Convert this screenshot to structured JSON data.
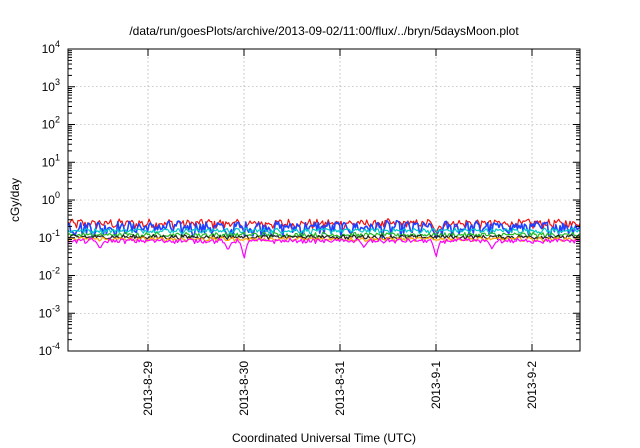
{
  "chart_data": {
    "type": "line",
    "title": "/data/run/goesPlots/archive/2013-09-02/11:00/flux/../bryn/5daysMoon.plot",
    "xlabel": "Coordinated Universal Time (UTC)",
    "ylabel": "cGy/day",
    "yscale": "log",
    "ylim": [
      0.0001,
      10000
    ],
    "y_ticks": [
      {
        "value": 0.0001,
        "base": "10",
        "exp": "-4"
      },
      {
        "value": 0.001,
        "base": "10",
        "exp": "-3"
      },
      {
        "value": 0.01,
        "base": "10",
        "exp": "-2"
      },
      {
        "value": 0.1,
        "base": "10",
        "exp": "-1"
      },
      {
        "value": 1,
        "base": "10",
        "exp": "0"
      },
      {
        "value": 10,
        "base": "10",
        "exp": "1"
      },
      {
        "value": 100,
        "base": "10",
        "exp": "2"
      },
      {
        "value": 1000,
        "base": "10",
        "exp": "3"
      },
      {
        "value": 10000,
        "base": "10",
        "exp": "4"
      }
    ],
    "xlim": [
      "2013-08-28T04:00",
      "2013-09-02T12:00"
    ],
    "x_ticks": [
      {
        "value": "2013-08-29T00:00",
        "label": "2013-8-29"
      },
      {
        "value": "2013-08-30T00:00",
        "label": "2013-8-30"
      },
      {
        "value": "2013-08-31T00:00",
        "label": "2013-8-31"
      },
      {
        "value": "2013-09-01T00:00",
        "label": "2013-9-1"
      },
      {
        "value": "2013-09-02T00:00",
        "label": "2013-9-2"
      }
    ],
    "grid": true,
    "legend": "none",
    "series": [
      {
        "color": "#ee1111",
        "base": 0.24,
        "amp": 0.06,
        "dips": [
          {
            "x": "2013-08-30T00:00",
            "y": 0.14
          },
          {
            "x": "2013-09-01T00:00",
            "y": 0.13
          }
        ]
      },
      {
        "color": "#1e40ff",
        "base": 0.19,
        "amp": 0.07,
        "dips": [
          {
            "x": "2013-08-29T20:00",
            "y": 0.1
          },
          {
            "x": "2013-09-01T00:00",
            "y": 0.1
          }
        ]
      },
      {
        "color": "#00c8c8",
        "base": 0.155,
        "amp": 0.02,
        "dips": []
      },
      {
        "color": "#22bb22",
        "base": 0.12,
        "amp": 0.015,
        "dips": []
      },
      {
        "color": "#222222",
        "base": 0.105,
        "amp": 0.012,
        "dips": []
      },
      {
        "color": "#ffa000",
        "base": 0.092,
        "amp": 0.01,
        "dips": []
      },
      {
        "color": "#ff00ff",
        "base": 0.083,
        "amp": 0.01,
        "dips": [
          {
            "x": "2013-08-28T12:00",
            "y": 0.05
          },
          {
            "x": "2013-08-29T20:00",
            "y": 0.045
          },
          {
            "x": "2013-08-30T00:00",
            "y": 0.025
          },
          {
            "x": "2013-08-31T06:00",
            "y": 0.055
          },
          {
            "x": "2013-09-01T00:00",
            "y": 0.028
          },
          {
            "x": "2013-09-01T14:00",
            "y": 0.05
          }
        ]
      }
    ]
  }
}
